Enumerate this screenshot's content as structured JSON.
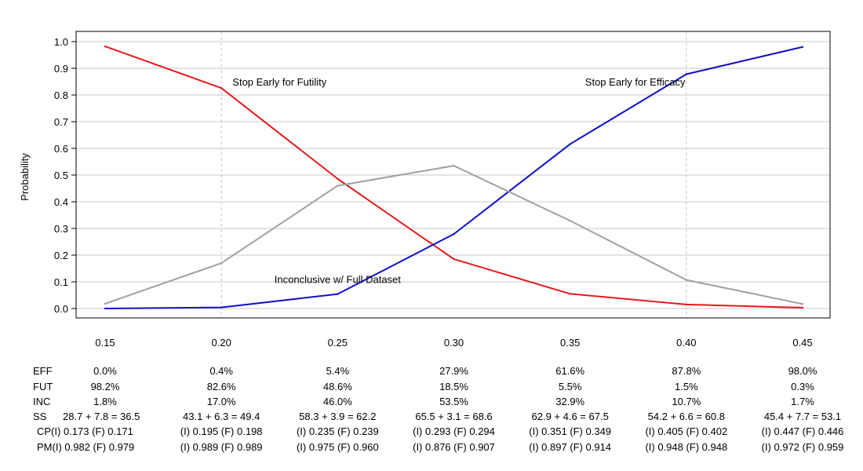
{
  "chart_data": {
    "type": "line",
    "title": "",
    "xlabel": "",
    "ylabel": "Probability",
    "x": [
      0.15,
      0.2,
      0.25,
      0.3,
      0.35,
      0.4,
      0.45
    ],
    "x_tick_labels": [
      "0.15",
      "0.20",
      "0.25",
      "0.30",
      "0.35",
      "0.40",
      "0.45"
    ],
    "ylim": [
      0,
      1
    ],
    "y_ticks": [
      0.0,
      0.1,
      0.2,
      0.3,
      0.4,
      0.5,
      0.6,
      0.7,
      0.8,
      0.9,
      1.0
    ],
    "y_tick_labels": [
      "0.0",
      "0.1",
      "0.2",
      "0.3",
      "0.4",
      "0.5",
      "0.6",
      "0.7",
      "0.8",
      "0.9",
      "1.0"
    ],
    "grid": "horizontal",
    "vertical_reference_lines_x": [
      0.2,
      0.4
    ],
    "series": [
      {
        "key": "futility",
        "color": "#e41a1c",
        "values": [
          0.982,
          0.826,
          0.486,
          0.185,
          0.055,
          0.015,
          0.003
        ]
      },
      {
        "key": "efficacy",
        "color": "#1010c8",
        "values": [
          0.0,
          0.004,
          0.054,
          0.279,
          0.616,
          0.878,
          0.98
        ]
      },
      {
        "key": "inconclusive",
        "color": "#a0a0a0",
        "values": [
          0.018,
          0.17,
          0.46,
          0.535,
          0.329,
          0.107,
          0.017
        ]
      }
    ],
    "annotations": [
      {
        "text": "Stop Early for Futility",
        "x": 0.225,
        "y": 0.85
      },
      {
        "text": "Stop Early for Efficacy",
        "x": 0.378,
        "y": 0.85
      },
      {
        "text": "Inconclusive w/ Full Dataset",
        "x": 0.25,
        "y": 0.11
      }
    ],
    "table": {
      "row_labels": [
        "EFF",
        "FUT",
        "INC",
        "SS",
        "CP",
        "PM"
      ],
      "rows": [
        [
          "0.0%",
          "0.4%",
          "5.4%",
          "27.9%",
          "61.6%",
          "87.8%",
          "98.0%"
        ],
        [
          "98.2%",
          "82.6%",
          "48.6%",
          "18.5%",
          "5.5%",
          "1.5%",
          "0.3%"
        ],
        [
          "1.8%",
          "17.0%",
          "46.0%",
          "53.5%",
          "32.9%",
          "10.7%",
          "1.7%"
        ],
        [
          "28.7 + 7.8 = 36.5",
          "43.1 + 6.3 = 49.4",
          "58.3 + 3.9 = 62.2",
          "65.5 + 3.1 = 68.6",
          "62.9 + 4.6 = 67.5",
          "54.2 + 6.6 = 60.8",
          "45.4 + 7.7 = 53.1"
        ],
        [
          "(I) 0.173 (F) 0.171",
          "(I) 0.195 (F) 0.198",
          "(I) 0.235 (F) 0.239",
          "(I) 0.293 (F) 0.294",
          "(I) 0.351 (F) 0.349",
          "(I) 0.405 (F) 0.402",
          "(I) 0.447 (F) 0.446"
        ],
        [
          "(I) 0.982 (F) 0.979",
          "(I) 0.989 (F) 0.989",
          "(I) 0.975 (F) 0.960",
          "(I) 0.876 (F) 0.907",
          "(I) 0.897 (F) 0.914",
          "(I) 0.948 (F) 0.948",
          "(I) 0.972 (F) 0.959"
        ]
      ]
    }
  }
}
